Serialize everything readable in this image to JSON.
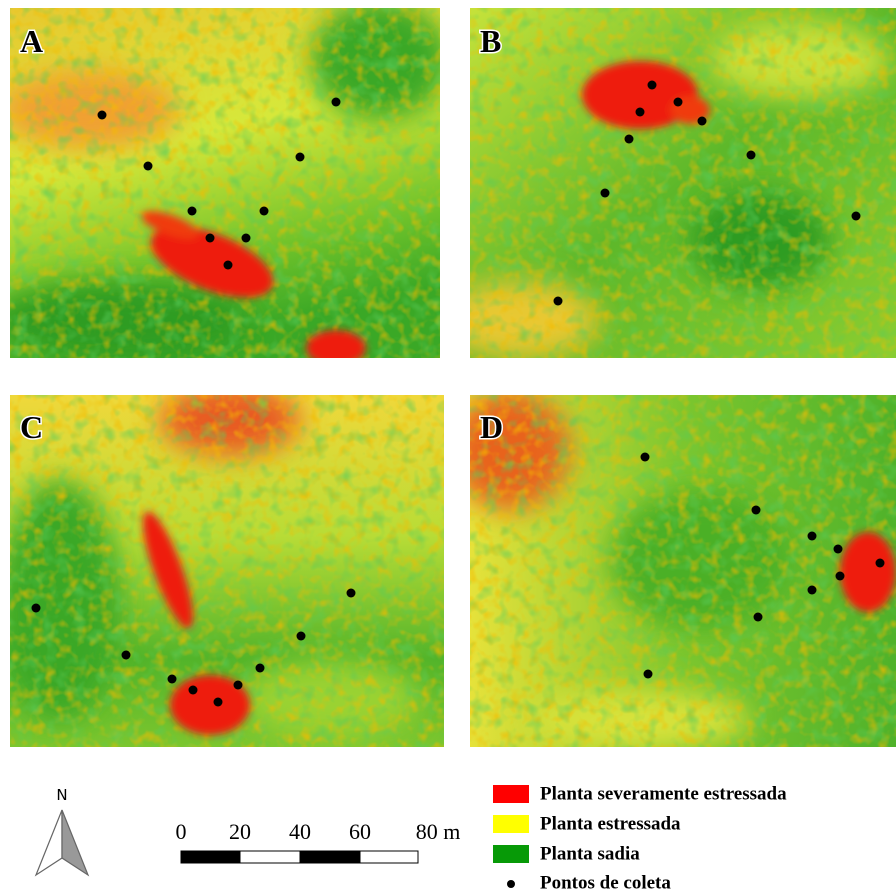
{
  "panels": [
    {
      "label": "A"
    },
    {
      "label": "B"
    },
    {
      "label": "C"
    },
    {
      "label": "D"
    }
  ],
  "north_arrow": {
    "label": "N"
  },
  "scale_bar": {
    "labels": [
      "0",
      "20",
      "40",
      "60",
      "80 m"
    ]
  },
  "legend": {
    "items": [
      {
        "label": "Planta severamente estressada",
        "color": "#ff0000"
      },
      {
        "label": "Planta estressada",
        "color": "#ffff00"
      },
      {
        "label": "Planta sadia",
        "color": "#079a07"
      },
      {
        "label": "Pontos de coleta",
        "color": "#000000"
      }
    ]
  }
}
